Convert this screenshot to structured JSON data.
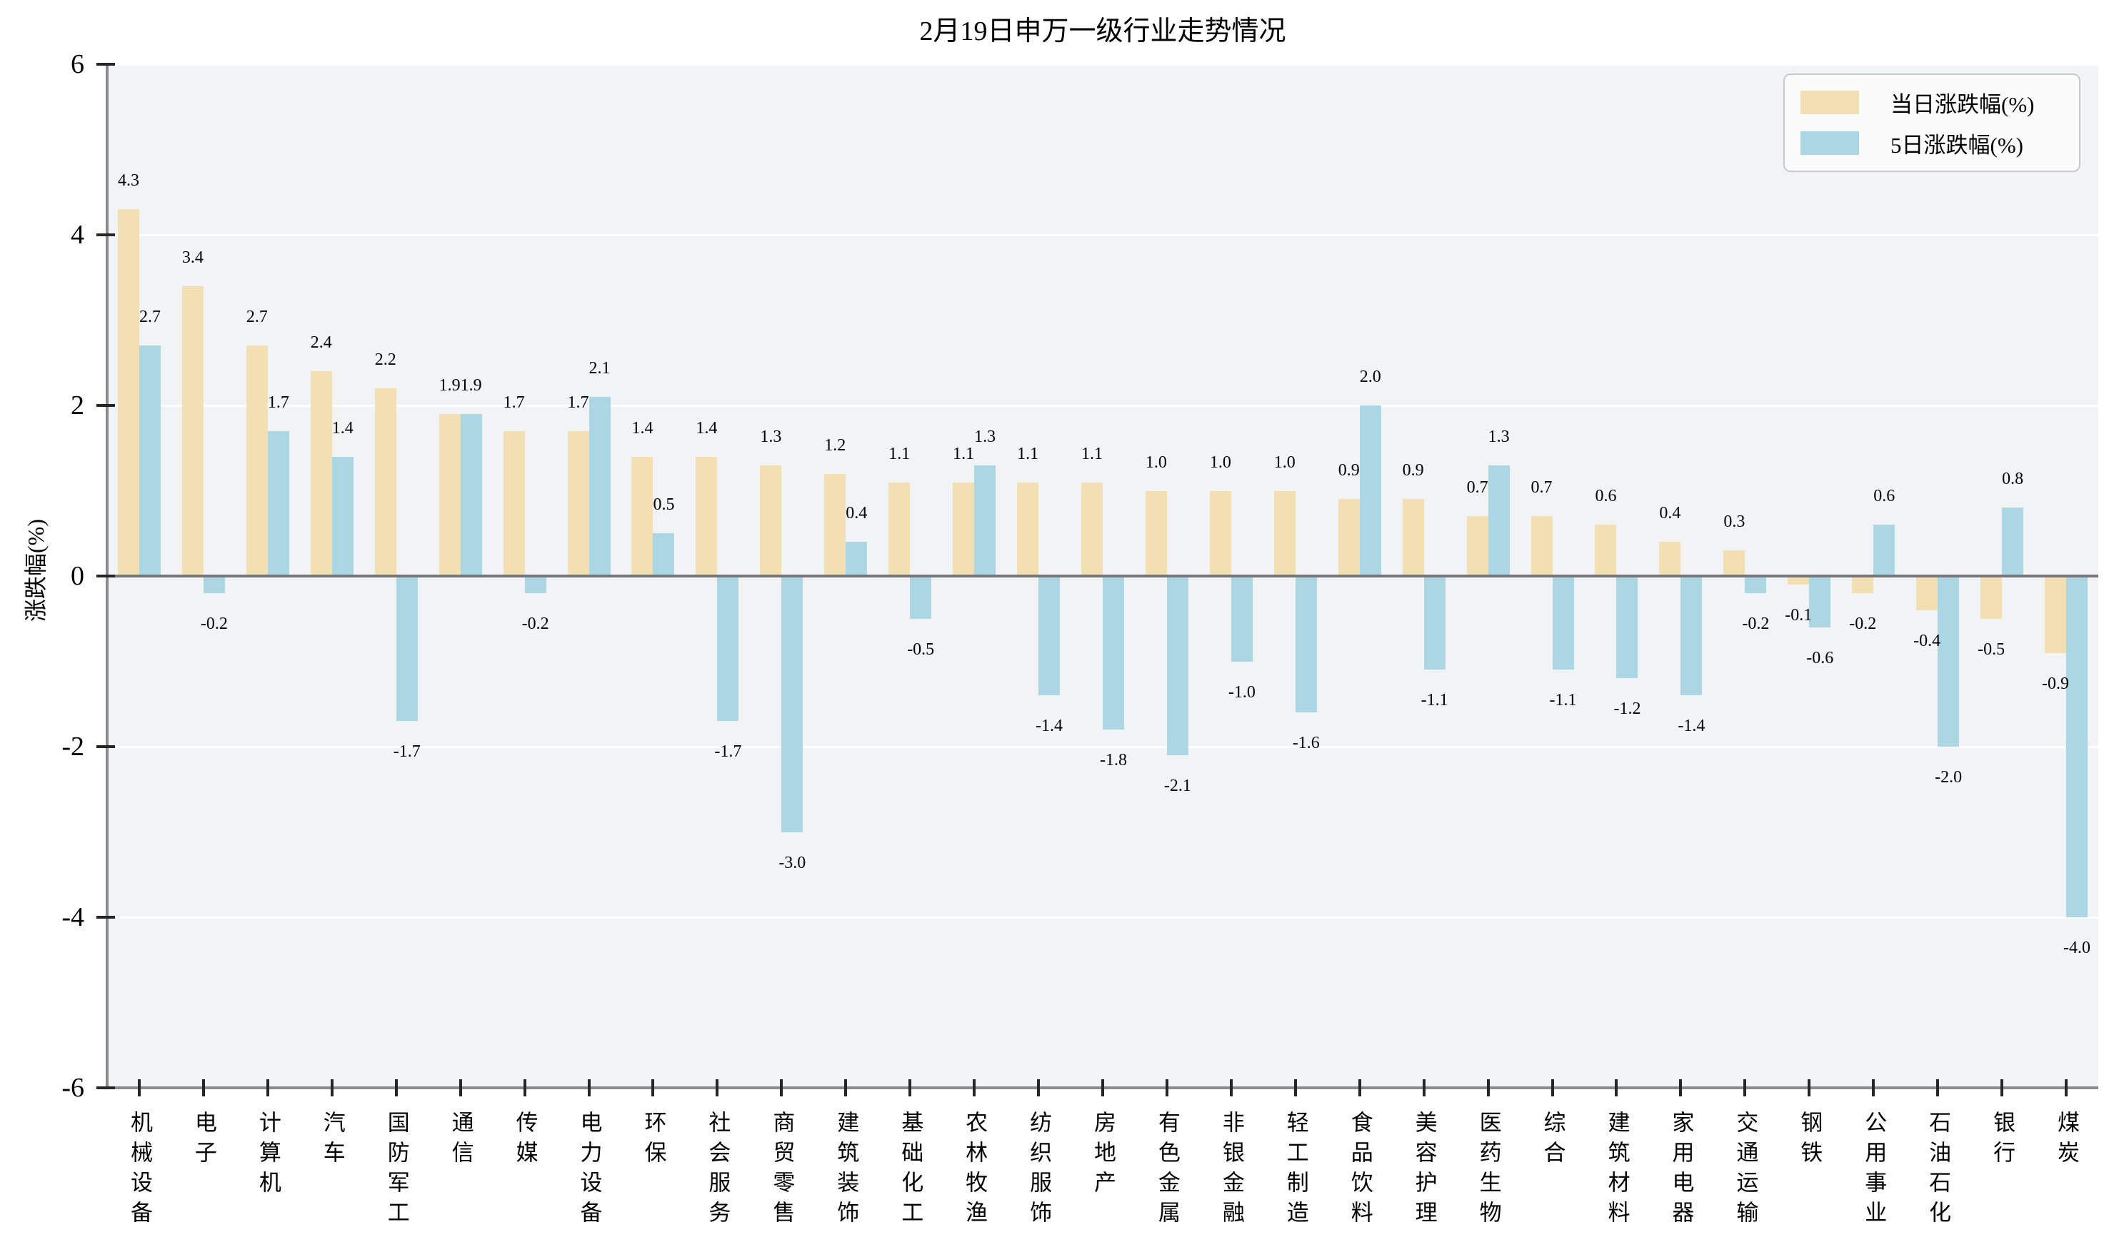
{
  "title": "2月19日申万一级行业走势情况",
  "chart_data": {
    "type": "bar",
    "title": "2月19日申万一级行业走势情况",
    "xlabel": "",
    "ylabel": "涨跌幅(%)",
    "ylim": [
      -6,
      6
    ],
    "yticks": [
      6,
      4,
      2,
      0,
      -2,
      -4,
      -6
    ],
    "grid": true,
    "legend_position": "upper-right",
    "categories": [
      "机械设备",
      "电子",
      "计算机",
      "汽车",
      "国防军工",
      "通信",
      "传媒",
      "电力设备",
      "环保",
      "社会服务",
      "商贸零售",
      "建筑装饰",
      "基础化工",
      "农林牧渔",
      "纺织服饰",
      "房地产",
      "有色金属",
      "非银金融",
      "轻工制造",
      "食品饮料",
      "美容护理",
      "医药生物",
      "综合",
      "建筑材料",
      "家用电器",
      "交通运输",
      "钢铁",
      "公用事业",
      "石油石化",
      "银行",
      "煤炭"
    ],
    "series": [
      {
        "name": "当日涨跌幅(%)",
        "key": "daily",
        "color": "#F3E0B2",
        "values": [
          4.3,
          3.4,
          2.7,
          2.4,
          2.2,
          1.9,
          1.7,
          1.7,
          1.4,
          1.4,
          1.3,
          1.2,
          1.1,
          1.1,
          1.1,
          1.1,
          1.0,
          1.0,
          1.0,
          0.9,
          0.9,
          0.7,
          0.7,
          0.6,
          0.4,
          0.3,
          -0.1,
          -0.2,
          -0.4,
          -0.5,
          -0.9
        ]
      },
      {
        "name": "5日涨跌幅(%)",
        "key": "5day",
        "color": "#ABD6E4",
        "values": [
          2.7,
          -0.2,
          1.7,
          1.4,
          -1.7,
          1.9,
          -0.2,
          2.1,
          0.5,
          -1.7,
          -3.0,
          0.4,
          -0.5,
          1.3,
          -1.4,
          -1.8,
          -2.1,
          -1.0,
          -1.6,
          2.0,
          -1.1,
          1.3,
          -1.1,
          -1.2,
          -1.4,
          -0.2,
          -0.6,
          0.6,
          -2.0,
          0.8,
          -4.0
        ]
      }
    ]
  },
  "style": {
    "plot_bg": "#F2F3F4",
    "grid_color": "#FFFFFF",
    "zero_line_color": "#777777",
    "spine_color": "#8A8A8A",
    "tick_color": "#262626",
    "text_color": "#000000",
    "legend_bg": "#FBFBFB",
    "legend_border": "#C9C9C9"
  }
}
